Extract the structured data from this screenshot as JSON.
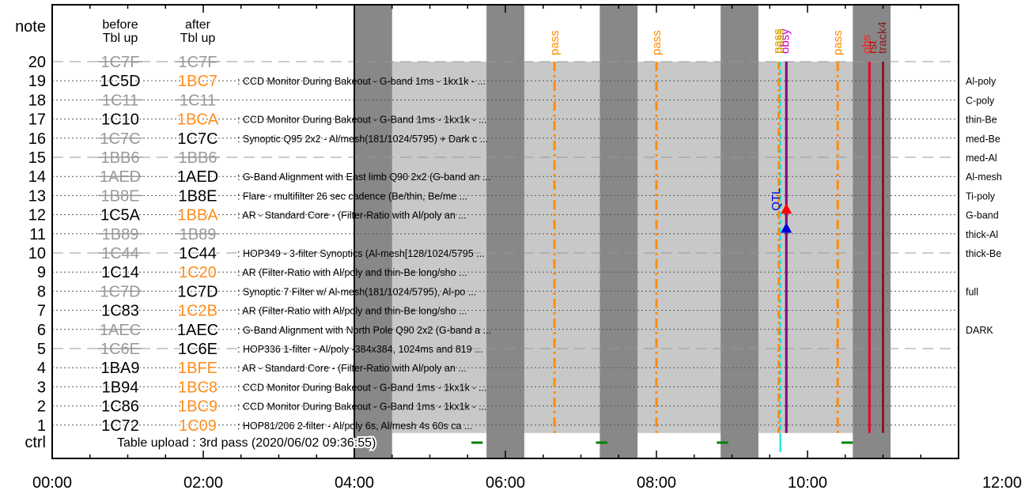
{
  "chart_data": {
    "type": "timeline",
    "time_axis": {
      "min_hours": 0,
      "max_hours": 12,
      "tick_labels": [
        "00:00",
        "02:00",
        "04:00",
        "06:00",
        "08:00",
        "10:00",
        "12:00"
      ]
    },
    "note_label": "note",
    "ctrl_label": "ctrl",
    "before_header": [
      "before",
      "Tbl up"
    ],
    "after_header": [
      "after",
      "Tbl up"
    ],
    "upload_text": "Table upload : 3rd pass (2020/06/02 09:36:55)",
    "rows": [
      {
        "n": 20,
        "before": "1C7F",
        "before_state": "inactive",
        "after": "1C7F",
        "after_state": "inactive",
        "desc": "",
        "filter": ""
      },
      {
        "n": 19,
        "before": "1C5D",
        "before_state": "active",
        "after": "1BC7",
        "after_state": "changed",
        "desc": "CCD Monitor During Bakeout - G-band 1ms - 1kx1k - ...",
        "filter": "Al-poly"
      },
      {
        "n": 18,
        "before": "1C11",
        "before_state": "inactive",
        "after": "1C11",
        "after_state": "inactive",
        "desc": "",
        "filter": "C-poly"
      },
      {
        "n": 17,
        "before": "1C10",
        "before_state": "active",
        "after": "1BCA",
        "after_state": "changed",
        "desc": "CCD Monitor During Bakeout - G-Band 1ms - 1kx1k - ...",
        "filter": "thin-Be"
      },
      {
        "n": 16,
        "before": "1C7C",
        "before_state": "inactive",
        "after": "1C7C",
        "after_state": "active",
        "desc": "Synoptic Q95 2x2 - Al/mesh(181/1024/5795) + Dark c ...",
        "filter": "med-Be"
      },
      {
        "n": 15,
        "before": "1BB6",
        "before_state": "inactive",
        "after": "1BB6",
        "after_state": "inactive",
        "desc": "",
        "filter": "med-Al"
      },
      {
        "n": 14,
        "before": "1AED",
        "before_state": "inactive",
        "after": "1AED",
        "after_state": "active",
        "desc": "G-Band Alignment with East limb Q90 2x2 (G-band an ...",
        "filter": "Al-mesh"
      },
      {
        "n": 13,
        "before": "1B8E",
        "before_state": "inactive",
        "after": "1B8E",
        "after_state": "active",
        "desc": "Flare - multifilter 26 sec cadence (Be/thin, Be/me ...",
        "filter": "Ti-poly"
      },
      {
        "n": 12,
        "before": "1C5A",
        "before_state": "active",
        "after": "1BBA",
        "after_state": "changed",
        "desc": "AR - Standard Core - (Filter-Ratio with Al/poly an ...",
        "filter": "G-band"
      },
      {
        "n": 11,
        "before": "1B89",
        "before_state": "inactive",
        "after": "1B89",
        "after_state": "inactive",
        "desc": "",
        "filter": "thick-Al"
      },
      {
        "n": 10,
        "before": "1C44",
        "before_state": "inactive",
        "after": "1C44",
        "after_state": "active",
        "desc": "HOP349 - 3-filter Synoptics (Al-mesh[128/1024/5795 ...",
        "filter": "thick-Be"
      },
      {
        "n": 9,
        "before": "1C14",
        "before_state": "active",
        "after": "1C20",
        "after_state": "changed",
        "desc": "AR (Filter-Ratio with Al/poly and thin-Be long/sho ...",
        "filter": ""
      },
      {
        "n": 8,
        "before": "1C7D",
        "before_state": "inactive",
        "after": "1C7D",
        "after_state": "active",
        "desc": "Synoptic 7 Filter w/ Al-mesh(181/1024/5795), Al-po ...",
        "filter": "full"
      },
      {
        "n": 7,
        "before": "1C83",
        "before_state": "active",
        "after": "1C2B",
        "after_state": "changed",
        "desc": "AR (Filter-Ratio with Al/poly and thin-Be long/sho ...",
        "filter": ""
      },
      {
        "n": 6,
        "before": "1AEC",
        "before_state": "inactive",
        "after": "1AEC",
        "after_state": "active",
        "desc": "G-Band Alignment with North Pole Q90 2x2 (G-band a ...",
        "filter": "DARK"
      },
      {
        "n": 5,
        "before": "1C6E",
        "before_state": "inactive",
        "after": "1C6E",
        "after_state": "active",
        "desc": "HOP336 1-filter - Al/poly -384x384, 1024ms and 819 ...",
        "filter": ""
      },
      {
        "n": 4,
        "before": "1BA9",
        "before_state": "active",
        "after": "1BFE",
        "after_state": "changed",
        "desc": "AR - Standard Core - (Filter-Ratio with Al/poly an ...",
        "filter": ""
      },
      {
        "n": 3,
        "before": "1B94",
        "before_state": "active",
        "after": "1BC8",
        "after_state": "changed",
        "desc": "CCD Monitor During Bakeout - G-Band 1ms - 1kx1k - ...",
        "filter": ""
      },
      {
        "n": 2,
        "before": "1C86",
        "before_state": "active",
        "after": "1BC9",
        "after_state": "changed",
        "desc": "CCD Monitor During Bakeout - G-Band 1ms - 1kx1k - ...",
        "filter": ""
      },
      {
        "n": 1,
        "before": "1C72",
        "before_state": "active",
        "after": "1C09",
        "after_state": "changed",
        "desc": "HOP81/206 2-filter - Al/poly 6s, Al/mesh 4s 60s ca ...",
        "filter": ""
      }
    ],
    "night_bands_hours": [
      [
        4.0,
        4.5
      ],
      [
        5.75,
        6.25
      ],
      [
        7.25,
        7.75
      ],
      [
        8.85,
        9.35
      ],
      [
        10.6,
        11.1
      ]
    ],
    "active_region_hours": [
      4.0,
      11.1
    ],
    "table_upload_hours": 4.0,
    "pass_markers": [
      {
        "hour": 6.65,
        "label": "pass"
      },
      {
        "hour": 8.0,
        "label": "pass"
      },
      {
        "hour": 10.4,
        "label": "pass"
      }
    ],
    "top_labels": [
      {
        "hour": 9.6,
        "label": "pass",
        "color": "#ff8c00"
      },
      {
        "hour": 9.63,
        "label": "pass",
        "color": "#b5b500"
      },
      {
        "hour": 9.7,
        "label": "obsy",
        "color": "#cc00cc"
      },
      {
        "hour": 10.78,
        "label": "obs",
        "color": "#ff2222"
      },
      {
        "hour": 10.86,
        "label": "rst",
        "color": "#cc0000"
      },
      {
        "hour": 10.99,
        "label": "track4",
        "color": "#8b1a1a"
      }
    ],
    "qtl_label": {
      "hour": 9.58,
      "label": "QTL"
    },
    "events": [
      {
        "hour": 9.62,
        "type": "line",
        "color": "#ff8c00"
      },
      {
        "hour": 9.64,
        "type": "line",
        "color": "#00e0e0"
      },
      {
        "hour": 9.72,
        "type": "line",
        "color": "#800080"
      },
      {
        "hour": 10.82,
        "type": "line",
        "color": "#e8002a"
      },
      {
        "hour": 11.0,
        "type": "line",
        "color": "#8b1a1a"
      }
    ],
    "triangles": [
      {
        "hour": 9.72,
        "row": 12.3,
        "color": "#ff0000"
      },
      {
        "hour": 9.72,
        "row": 11.3,
        "color": "#0000dd"
      }
    ],
    "ctrl_segments_hours": [
      [
        5.55,
        5.7
      ],
      [
        7.2,
        7.35
      ],
      [
        8.8,
        8.95
      ],
      [
        10.45,
        10.6
      ]
    ],
    "colors": {
      "active": "#000000",
      "inactive": "#999999",
      "changed": "#ff8c1a",
      "shade": "#c8c8c8",
      "night": "#888888",
      "pass": "#ff8c00",
      "ctrl": "#008000",
      "cyan": "#00e0e0"
    }
  }
}
